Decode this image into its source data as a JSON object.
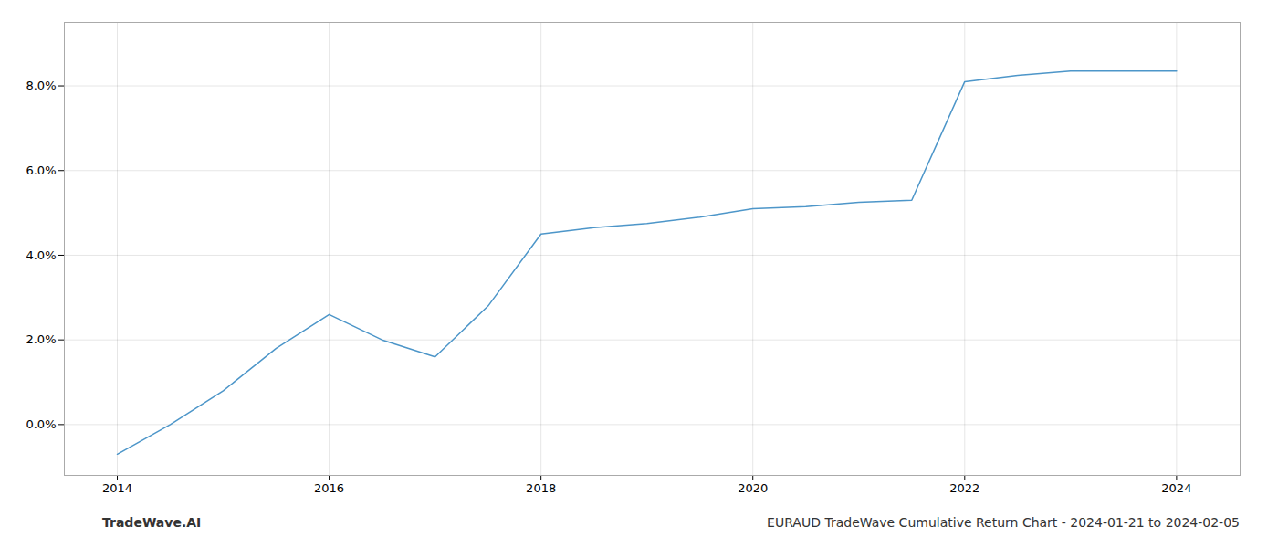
{
  "chart_data": {
    "type": "line",
    "x": [
      2014,
      2014.5,
      2015,
      2015.5,
      2016,
      2016.5,
      2017,
      2017.5,
      2018,
      2018.5,
      2019,
      2019.5,
      2020,
      2020.5,
      2021,
      2021.5,
      2022,
      2022.5,
      2023,
      2023.5,
      2024
    ],
    "values": [
      -0.7,
      0.0,
      0.8,
      1.8,
      2.6,
      2.0,
      1.6,
      2.8,
      4.5,
      4.65,
      4.75,
      4.9,
      5.1,
      5.15,
      5.25,
      5.3,
      8.1,
      8.25,
      8.35,
      8.35,
      8.35
    ],
    "color": "#4d96c9",
    "xlim": [
      2013.5,
      2024.6
    ],
    "xticks": [
      2014,
      2016,
      2018,
      2020,
      2022,
      2024
    ],
    "ylim": [
      -1.2,
      9.5
    ],
    "yticks": [
      {
        "value": 0.0,
        "label": "0.0%"
      },
      {
        "value": 2.0,
        "label": "2.0%"
      },
      {
        "value": 4.0,
        "label": "4.0%"
      },
      {
        "value": 6.0,
        "label": "6.0%"
      },
      {
        "value": 8.0,
        "label": "8.0%"
      }
    ],
    "grid": true,
    "annotations": [
      "TradeWave.AI",
      "EURAUD TradeWave Cumulative Return Chart - 2024-01-21 to 2024-02-05"
    ]
  }
}
